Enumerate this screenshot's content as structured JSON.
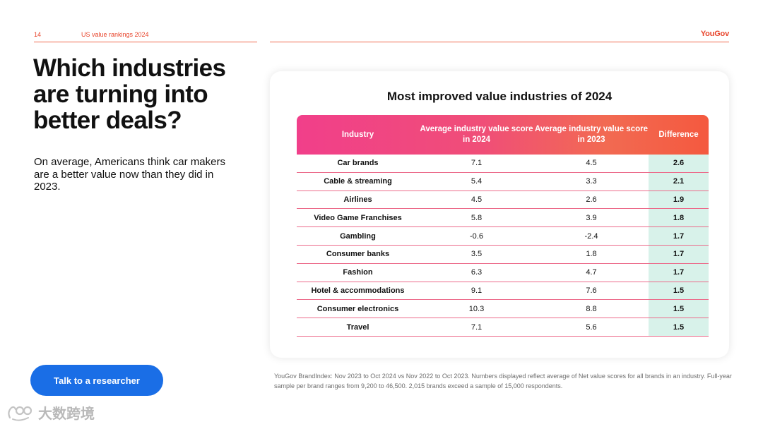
{
  "header": {
    "page_number": "14",
    "section": "US value rankings 2024",
    "brand": "YouGov"
  },
  "headline": "Which industries are turning into better deals?",
  "subtext": "On average, Americans think car makers are a better value now than they did in 2023.",
  "cta_label": "Talk to a researcher",
  "table": {
    "title": "Most improved value industries of 2024",
    "headers": {
      "industry": "Industry",
      "score_2024": "Average industry value score in 2024",
      "score_2023": "Average industry value score in 2023",
      "difference": "Difference"
    },
    "rows": [
      {
        "industry": "Car brands",
        "score_2024": "7.1",
        "score_2023": "4.5",
        "difference": "2.6"
      },
      {
        "industry": "Cable & streaming",
        "score_2024": "5.4",
        "score_2023": "3.3",
        "difference": "2.1"
      },
      {
        "industry": "Airlines",
        "score_2024": "4.5",
        "score_2023": "2.6",
        "difference": "1.9"
      },
      {
        "industry": "Video Game Franchises",
        "score_2024": "5.8",
        "score_2023": "3.9",
        "difference": "1.8"
      },
      {
        "industry": "Gambling",
        "score_2024": "-0.6",
        "score_2023": "-2.4",
        "difference": "1.7"
      },
      {
        "industry": "Consumer banks",
        "score_2024": "3.5",
        "score_2023": "1.8",
        "difference": "1.7"
      },
      {
        "industry": "Fashion",
        "score_2024": "6.3",
        "score_2023": "4.7",
        "difference": "1.7"
      },
      {
        "industry": "Hotel & accommodations",
        "score_2024": "9.1",
        "score_2023": "7.6",
        "difference": "1.5"
      },
      {
        "industry": "Consumer electronics",
        "score_2024": "10.3",
        "score_2023": "8.8",
        "difference": "1.5"
      },
      {
        "industry": "Travel",
        "score_2024": "7.1",
        "score_2023": "5.6",
        "difference": "1.5"
      }
    ]
  },
  "footnote": "YouGov BrandIndex: Nov 2023 to Oct 2024 vs Nov 2022 to Oct 2023. Numbers displayed reflect average of Net value scores for all brands in an industry. Full-year sample per brand ranges from 9,200 to 46,500. 2,015 brands exceed a sample of 15,000 respondents.",
  "watermark_text": "大数跨境",
  "colors": {
    "accent": "#e8452c",
    "cta": "#1a6ee6",
    "header_gradient_start": "#f13f8a",
    "header_gradient_end": "#f4593f",
    "difference_bg": "#d8f2ea"
  }
}
